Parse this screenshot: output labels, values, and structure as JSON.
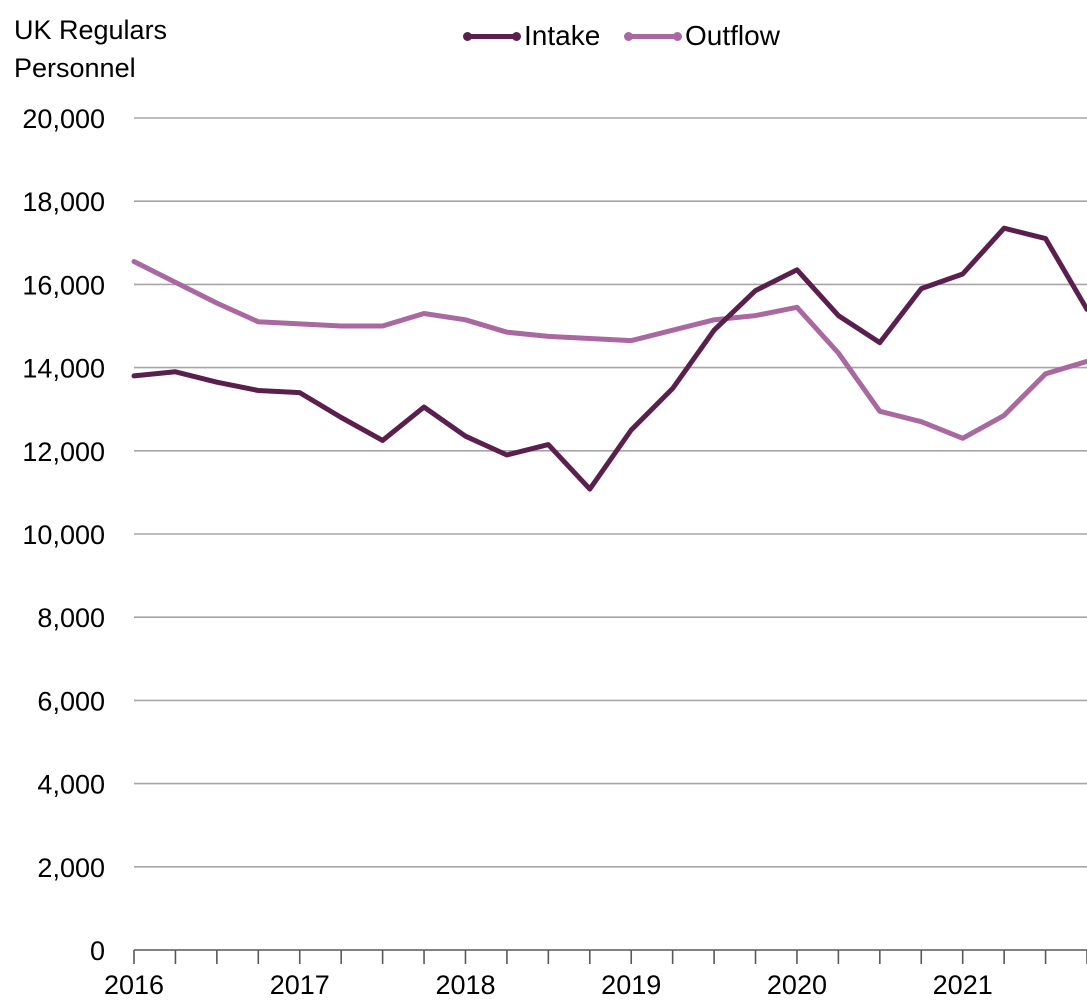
{
  "chart_data": {
    "type": "line",
    "ylabel_lines": [
      "UK Regulars",
      "Personnel"
    ],
    "xlabel": "",
    "ylim": [
      0,
      20000
    ],
    "yticks": [
      0,
      2000,
      4000,
      6000,
      8000,
      10000,
      12000,
      14000,
      16000,
      18000,
      20000
    ],
    "ytick_labels": [
      "0",
      "2,000",
      "4,000",
      "6,000",
      "8,000",
      "10,000",
      "12,000",
      "14,000",
      "16,000",
      "18,000",
      "20,000"
    ],
    "xlim": [
      2016,
      2021.75
    ],
    "xtick_labels": [
      "2016",
      "2017",
      "2018",
      "2019",
      "2020",
      "2021"
    ],
    "grid": true,
    "legend_position": "top-center",
    "x": [
      2016,
      2016.25,
      2016.5,
      2016.75,
      2017,
      2017.25,
      2017.5,
      2017.75,
      2018,
      2018.25,
      2018.5,
      2018.75,
      2019,
      2019.25,
      2019.5,
      2019.75,
      2020,
      2020.25,
      2020.5,
      2020.75,
      2021,
      2021.25,
      2021.5,
      2021.75
    ],
    "series": [
      {
        "name": "Intake",
        "color": "#5a1f4d",
        "values": [
          13800,
          13900,
          13650,
          13450,
          13400,
          12800,
          12250,
          13050,
          12350,
          11900,
          12150,
          11080,
          12500,
          13500,
          14900,
          15850,
          16350,
          15250,
          14600,
          15900,
          16250,
          17350,
          17100,
          15400
        ]
      },
      {
        "name": "Outflow",
        "color": "#a968a0",
        "values": [
          16550,
          16050,
          15550,
          15100,
          15050,
          15000,
          15000,
          15300,
          15150,
          14850,
          14750,
          14700,
          14650,
          14900,
          15150,
          15250,
          15450,
          14350,
          12950,
          12700,
          12300,
          12850,
          13850,
          14150
        ]
      }
    ]
  }
}
